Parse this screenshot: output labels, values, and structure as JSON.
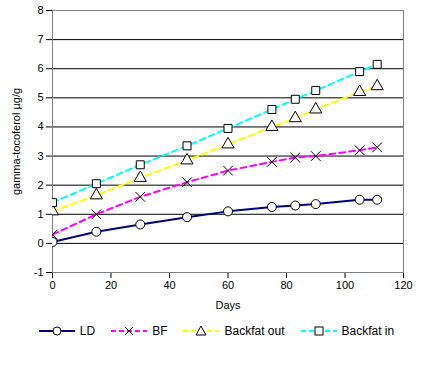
{
  "chart_data": {
    "type": "line",
    "x_label": "Days",
    "y_label": "gamma-tocoferol µg/g",
    "x": [
      0,
      15,
      30,
      46,
      60,
      75,
      83,
      90,
      105,
      111
    ],
    "series": [
      {
        "name": "LD",
        "color": "#000080",
        "marker": "circle",
        "line_style": "solid",
        "values": [
          0.05,
          0.4,
          0.65,
          0.9,
          1.1,
          1.25,
          1.3,
          1.35,
          1.5,
          1.5
        ]
      },
      {
        "name": "BF",
        "color": "#ff00ff",
        "marker": "x",
        "line_style": "dashed",
        "values": [
          0.3,
          1.0,
          1.6,
          2.1,
          2.5,
          2.8,
          2.95,
          3.0,
          3.2,
          3.3
        ]
      },
      {
        "name": "Backfat out",
        "color": "#ffff00",
        "marker": "triangle",
        "line_style": "dashed",
        "values": [
          1.1,
          1.65,
          2.25,
          2.85,
          3.4,
          4.0,
          4.3,
          4.6,
          5.2,
          5.4
        ]
      },
      {
        "name": "Backfat in",
        "color": "#00ffff",
        "marker": "square",
        "line_style": "dashed",
        "values": [
          1.4,
          2.05,
          2.7,
          3.35,
          3.95,
          4.6,
          4.95,
          5.25,
          5.9,
          6.15
        ]
      }
    ],
    "xlim": [
      0,
      120
    ],
    "xticks": [
      0,
      20,
      40,
      60,
      80,
      100,
      120
    ],
    "ylim": [
      -1,
      8
    ],
    "yticks": [
      -1,
      0,
      1,
      2,
      3,
      4,
      5,
      6,
      7,
      8
    ],
    "grid": true,
    "legend": "bottom"
  }
}
